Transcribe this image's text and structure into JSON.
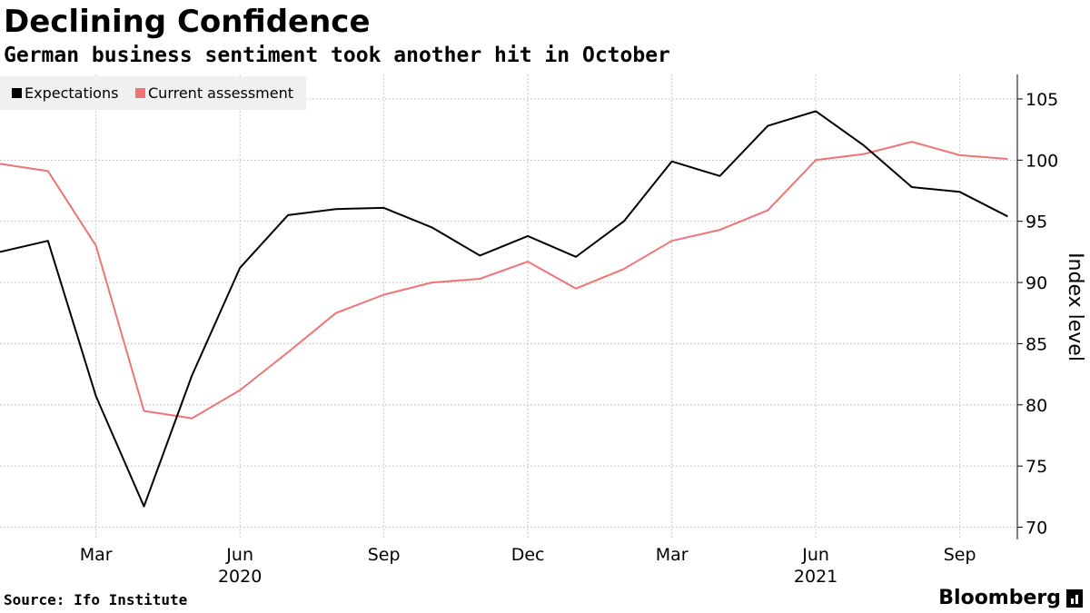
{
  "chart_data": {
    "type": "line",
    "title": "Declining Confidence",
    "subtitle": "German business sentiment took another hit in October",
    "ylabel": "Index level",
    "ylim": [
      69,
      107
    ],
    "yticks": [
      70,
      75,
      80,
      85,
      90,
      95,
      100,
      105
    ],
    "y_axis_position": "right",
    "grid": true,
    "legend_position": "top-left",
    "x": [
      "2020-01",
      "2020-02",
      "2020-03",
      "2020-04",
      "2020-05",
      "2020-06",
      "2020-07",
      "2020-08",
      "2020-09",
      "2020-10",
      "2020-11",
      "2020-12",
      "2021-01",
      "2021-02",
      "2021-03",
      "2021-04",
      "2021-05",
      "2021-06",
      "2021-07",
      "2021-08",
      "2021-09",
      "2021-10"
    ],
    "xlim": [
      "2020-01",
      "2021-10.2"
    ],
    "xticks": [
      {
        "at": "2020-03",
        "label": "Mar"
      },
      {
        "at": "2020-06",
        "label": "Jun"
      },
      {
        "at": "2020-09",
        "label": "Sep"
      },
      {
        "at": "2020-12",
        "label": "Dec"
      },
      {
        "at": "2021-03",
        "label": "Mar"
      },
      {
        "at": "2021-06",
        "label": "Jun"
      },
      {
        "at": "2021-09",
        "label": "Sep"
      }
    ],
    "year_labels": [
      {
        "at": "2020-06",
        "label": "2020"
      },
      {
        "at": "2021-06",
        "label": "2021"
      }
    ],
    "series": [
      {
        "name": "Expectations",
        "color": "#000000",
        "values": [
          92.5,
          93.4,
          80.7,
          71.7,
          82.4,
          91.2,
          95.5,
          96.0,
          96.1,
          94.5,
          92.2,
          93.8,
          92.1,
          95.0,
          99.9,
          98.7,
          102.8,
          104.0,
          101.2,
          97.8,
          97.4,
          95.4
        ]
      },
      {
        "name": "Current assessment",
        "color": "#f07474",
        "values": [
          99.7,
          99.1,
          93.0,
          79.5,
          78.9,
          81.2,
          84.3,
          87.5,
          89.0,
          90.0,
          90.3,
          91.7,
          89.5,
          91.1,
          93.4,
          94.3,
          95.9,
          100.0,
          100.5,
          101.5,
          100.4,
          100.1
        ]
      }
    ]
  },
  "footer": {
    "source": "Source: Ifo Institute",
    "brand": "Bloomberg",
    "brand_icon": "bloomberg-terminal-icon"
  }
}
